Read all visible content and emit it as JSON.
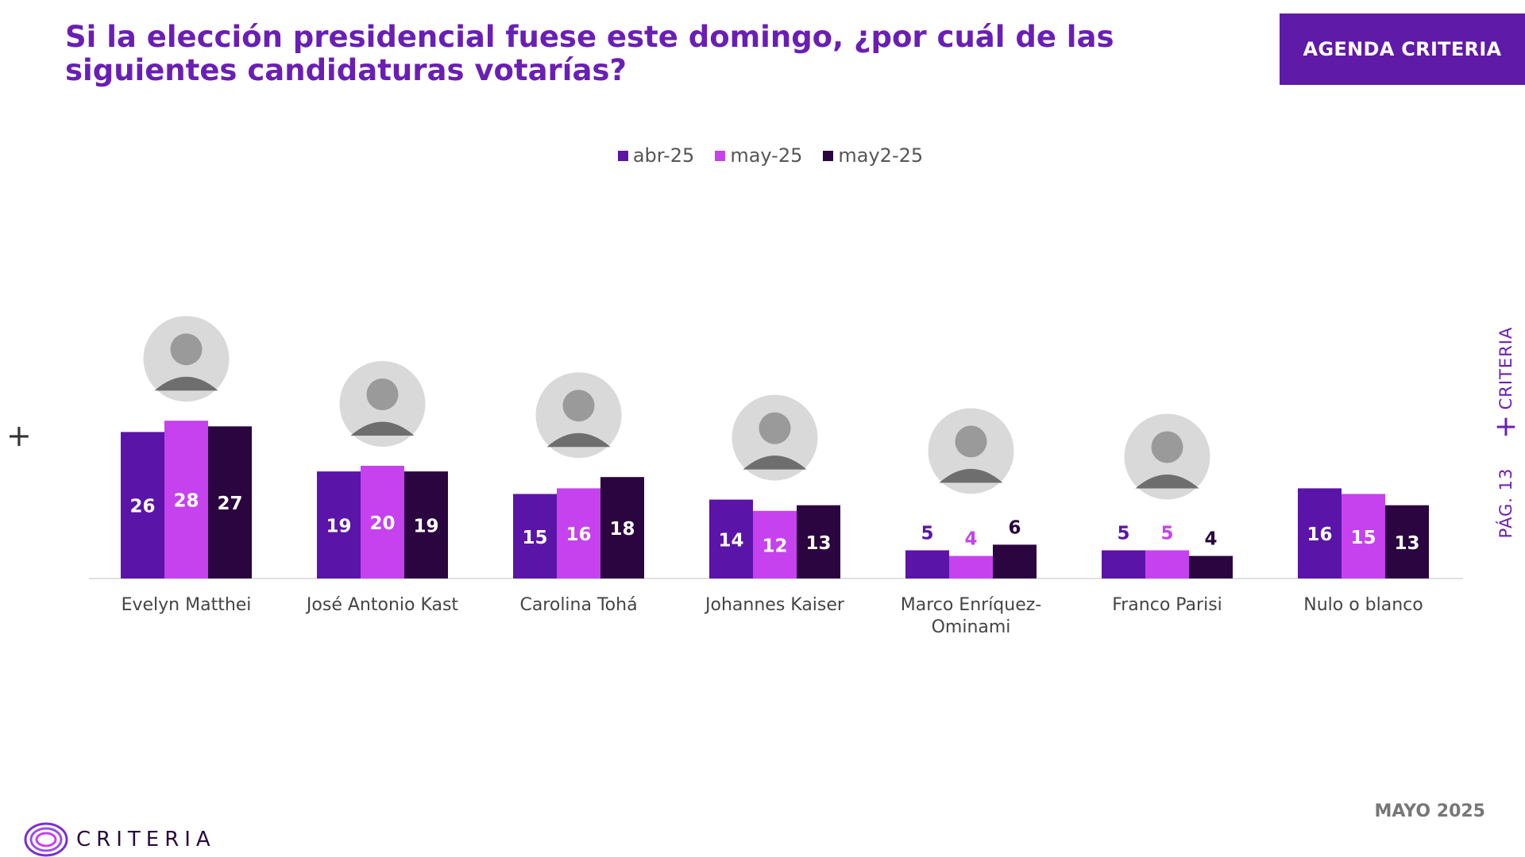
{
  "header": {
    "title": "Si la elección presidencial fuese este domingo, ¿por cuál de las siguientes candidaturas votarías?",
    "badge": "AGENDA CRITERIA"
  },
  "side": {
    "criteria": "CRITERIA",
    "page": "PÁG. 13"
  },
  "footer": {
    "date": "MAYO 2025",
    "logo_text": "CRITERIA"
  },
  "colors": {
    "accent": "#6a1fb4",
    "series": [
      "#5b14a8",
      "#c542ee",
      "#2a0540"
    ]
  },
  "chart_data": {
    "type": "bar",
    "title": "",
    "xlabel": "",
    "ylabel": "",
    "ylim": [
      0,
      30
    ],
    "legend_position": "top-center",
    "grid": false,
    "categories": [
      "Evelyn Matthei",
      "José Antonio Kast",
      "Carolina Tohá",
      "Johannes Kaiser",
      "Marco Enríquez-Ominami",
      "Franco Parisi",
      "Nulo o blanco"
    ],
    "series": [
      {
        "name": "abr-25",
        "values": [
          26,
          19,
          15,
          14,
          5,
          5,
          16
        ]
      },
      {
        "name": "may-25",
        "values": [
          28,
          20,
          16,
          12,
          4,
          5,
          15
        ]
      },
      {
        "name": "may2-25",
        "values": [
          27,
          19,
          18,
          13,
          6,
          4,
          13
        ]
      }
    ]
  }
}
